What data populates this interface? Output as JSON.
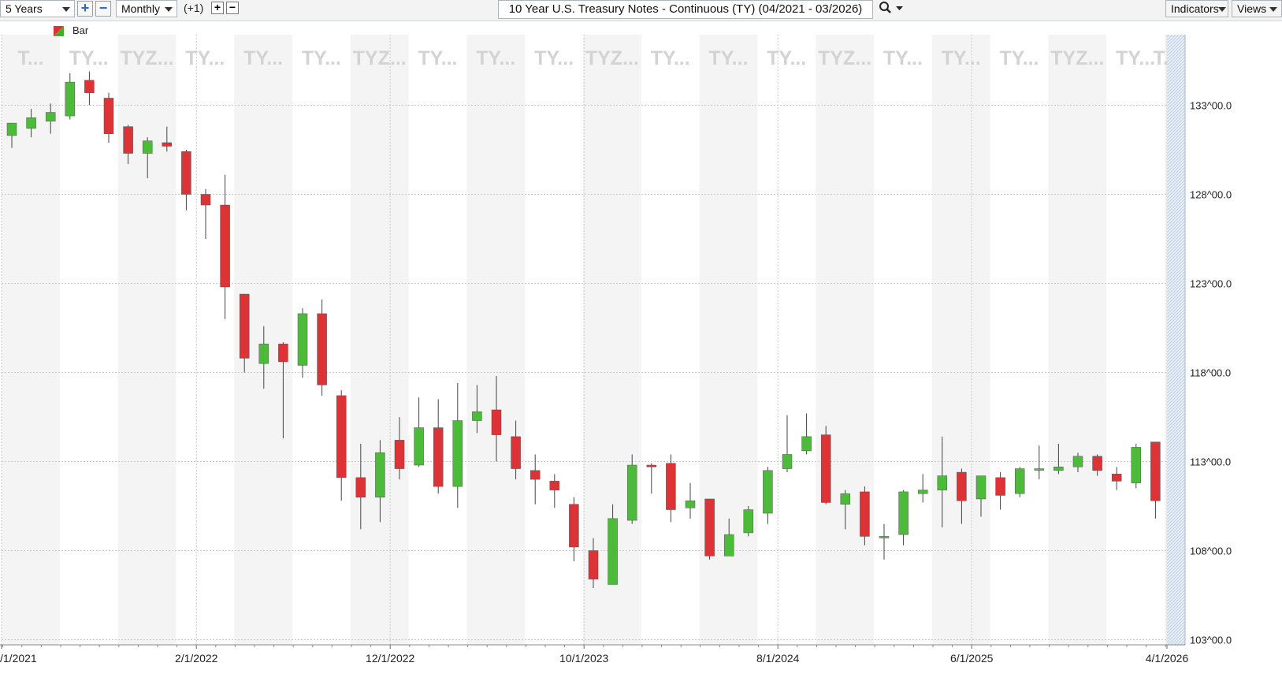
{
  "toolbar": {
    "range": "5 Years",
    "interval": "Monthly",
    "offset": "(+1)",
    "title": "10 Year U.S. Treasury Notes - Continuous (TY) (04/2021 - 03/2026)",
    "indicators_label": "Indicators",
    "views_label": "Views",
    "icons": {
      "zoom_in": "plus-icon",
      "zoom_out": "minus-icon",
      "offset_plus": "plus-icon",
      "offset_minus": "minus-icon",
      "search": "magnifier-icon",
      "dropdown": "chevron-down-icon"
    }
  },
  "legend": {
    "label": "Bar",
    "colors": [
      "#d9342b",
      "#3fae2a"
    ]
  },
  "colors": {
    "up": "#4dbb3a",
    "down": "#dd3337",
    "wick": "#444444",
    "grid": "#c9c9c9",
    "band": "#f4f4f4",
    "watermark": "#d3d3d3"
  },
  "chart_data": {
    "type": "candlestick",
    "interval": "monthly",
    "y_ticks": [
      "103^00.0",
      "108^00.0",
      "113^00.0",
      "118^00.0",
      "123^00.0",
      "128^00.0",
      "133^00.0"
    ],
    "ylim": [
      103,
      136
    ],
    "x_ticks": [
      "/1/2021",
      "2/1/2022",
      "12/1/2022",
      "10/1/2023",
      "8/1/2024",
      "6/1/2025",
      "4/1/2026"
    ],
    "watermarks": [
      "T...",
      "TY...",
      "TYZ...",
      "TY...",
      "TY...",
      "TY...",
      "TYZ...",
      "TY...",
      "TY...",
      "TY...",
      "TYZ...",
      "TY...",
      "TY...",
      "TY...",
      "TYZ...",
      "TY...",
      "TY...",
      "TY...",
      "TYZ...",
      "TY...",
      "T..."
    ],
    "candles": [
      {
        "month": "2021-04",
        "open": 131.3,
        "high": 132.0,
        "low": 130.6,
        "close": 132.0
      },
      {
        "month": "2021-05",
        "open": 131.7,
        "high": 132.8,
        "low": 131.2,
        "close": 132.3
      },
      {
        "month": "2021-06",
        "open": 132.1,
        "high": 133.1,
        "low": 131.4,
        "close": 132.6
      },
      {
        "month": "2021-07",
        "open": 132.4,
        "high": 134.8,
        "low": 132.2,
        "close": 134.3
      },
      {
        "month": "2021-08",
        "open": 134.4,
        "high": 134.9,
        "low": 133.0,
        "close": 133.7
      },
      {
        "month": "2021-09",
        "open": 133.4,
        "high": 133.7,
        "low": 130.9,
        "close": 131.4
      },
      {
        "month": "2021-10",
        "open": 131.8,
        "high": 131.9,
        "low": 129.7,
        "close": 130.3
      },
      {
        "month": "2021-11",
        "open": 130.3,
        "high": 131.2,
        "low": 128.9,
        "close": 131.0
      },
      {
        "month": "2021-12",
        "open": 130.9,
        "high": 131.8,
        "low": 130.4,
        "close": 130.7
      },
      {
        "month": "2022-01",
        "open": 130.4,
        "high": 130.5,
        "low": 127.1,
        "close": 128.0
      },
      {
        "month": "2022-02",
        "open": 128.0,
        "high": 128.3,
        "low": 125.5,
        "close": 127.4
      },
      {
        "month": "2022-03",
        "open": 127.4,
        "high": 129.1,
        "low": 121.0,
        "close": 122.8
      },
      {
        "month": "2022-04",
        "open": 122.4,
        "high": 122.4,
        "low": 118.0,
        "close": 118.8
      },
      {
        "month": "2022-05",
        "open": 118.5,
        "high": 120.6,
        "low": 117.1,
        "close": 119.6
      },
      {
        "month": "2022-06",
        "open": 119.6,
        "high": 119.7,
        "low": 114.3,
        "close": 118.6
      },
      {
        "month": "2022-07",
        "open": 118.4,
        "high": 121.6,
        "low": 117.7,
        "close": 121.3
      },
      {
        "month": "2022-08",
        "open": 121.3,
        "high": 122.1,
        "low": 116.7,
        "close": 117.3
      },
      {
        "month": "2022-09",
        "open": 116.7,
        "high": 117.0,
        "low": 110.8,
        "close": 112.1
      },
      {
        "month": "2022-10",
        "open": 112.1,
        "high": 114.0,
        "low": 109.2,
        "close": 111.0
      },
      {
        "month": "2022-11",
        "open": 111.0,
        "high": 114.2,
        "low": 109.6,
        "close": 113.5
      },
      {
        "month": "2022-12",
        "open": 114.2,
        "high": 115.5,
        "low": 112.0,
        "close": 112.6
      },
      {
        "month": "2023-01",
        "open": 112.8,
        "high": 116.6,
        "low": 112.7,
        "close": 114.9
      },
      {
        "month": "2023-02",
        "open": 114.9,
        "high": 116.5,
        "low": 111.2,
        "close": 111.6
      },
      {
        "month": "2023-03",
        "open": 111.6,
        "high": 117.4,
        "low": 110.4,
        "close": 115.3
      },
      {
        "month": "2023-04",
        "open": 115.3,
        "high": 117.3,
        "low": 114.6,
        "close": 115.8
      },
      {
        "month": "2023-05",
        "open": 115.9,
        "high": 117.8,
        "low": 113.0,
        "close": 114.5
      },
      {
        "month": "2023-06",
        "open": 114.4,
        "high": 115.3,
        "low": 112.0,
        "close": 112.6
      },
      {
        "month": "2023-07",
        "open": 112.5,
        "high": 113.4,
        "low": 110.6,
        "close": 112.0
      },
      {
        "month": "2023-08",
        "open": 111.9,
        "high": 112.3,
        "low": 110.4,
        "close": 111.4
      },
      {
        "month": "2023-09",
        "open": 110.6,
        "high": 111.0,
        "low": 107.4,
        "close": 108.2
      },
      {
        "month": "2023-10",
        "open": 108.0,
        "high": 108.7,
        "low": 105.9,
        "close": 106.4
      },
      {
        "month": "2023-11",
        "open": 106.1,
        "high": 110.6,
        "low": 106.1,
        "close": 109.8
      },
      {
        "month": "2023-12",
        "open": 109.7,
        "high": 113.4,
        "low": 109.5,
        "close": 112.8
      },
      {
        "month": "2024-01",
        "open": 112.8,
        "high": 112.9,
        "low": 111.2,
        "close": 112.7
      },
      {
        "month": "2024-02",
        "open": 112.9,
        "high": 113.4,
        "low": 109.6,
        "close": 110.3
      },
      {
        "month": "2024-03",
        "open": 110.4,
        "high": 111.8,
        "low": 109.8,
        "close": 110.8
      },
      {
        "month": "2024-04",
        "open": 110.9,
        "high": 110.9,
        "low": 107.5,
        "close": 107.7
      },
      {
        "month": "2024-05",
        "open": 107.7,
        "high": 109.8,
        "low": 107.7,
        "close": 108.9
      },
      {
        "month": "2024-06",
        "open": 109.0,
        "high": 110.5,
        "low": 108.8,
        "close": 110.3
      },
      {
        "month": "2024-07",
        "open": 110.1,
        "high": 112.7,
        "low": 109.5,
        "close": 112.5
      },
      {
        "month": "2024-08",
        "open": 112.6,
        "high": 115.6,
        "low": 112.4,
        "close": 113.4
      },
      {
        "month": "2024-09",
        "open": 113.6,
        "high": 115.7,
        "low": 113.4,
        "close": 114.4
      },
      {
        "month": "2024-10",
        "open": 114.5,
        "high": 115.0,
        "low": 110.6,
        "close": 110.7
      },
      {
        "month": "2024-11",
        "open": 110.6,
        "high": 111.4,
        "low": 109.2,
        "close": 111.2
      },
      {
        "month": "2024-12",
        "open": 111.3,
        "high": 111.6,
        "low": 108.3,
        "close": 108.8
      },
      {
        "month": "2025-01",
        "open": 108.8,
        "high": 109.5,
        "low": 107.5,
        "close": 108.8
      },
      {
        "month": "2025-02",
        "open": 108.9,
        "high": 111.4,
        "low": 108.3,
        "close": 111.3
      },
      {
        "month": "2025-03",
        "open": 111.2,
        "high": 112.3,
        "low": 110.7,
        "close": 111.4
      },
      {
        "month": "2025-04",
        "open": 111.4,
        "high": 114.4,
        "low": 109.3,
        "close": 112.2
      },
      {
        "month": "2025-05",
        "open": 112.4,
        "high": 112.6,
        "low": 109.5,
        "close": 110.8
      },
      {
        "month": "2025-06",
        "open": 110.9,
        "high": 112.1,
        "low": 109.9,
        "close": 112.2
      },
      {
        "month": "2025-07",
        "open": 112.1,
        "high": 112.4,
        "low": 110.3,
        "close": 111.1
      },
      {
        "month": "2025-08",
        "open": 111.2,
        "high": 112.7,
        "low": 111.0,
        "close": 112.6
      },
      {
        "month": "2025-09",
        "open": 112.6,
        "high": 113.9,
        "low": 112.0,
        "close": 112.6
      },
      {
        "month": "2025-10",
        "open": 112.5,
        "high": 114.0,
        "low": 112.3,
        "close": 112.7
      },
      {
        "month": "2025-11",
        "open": 112.7,
        "high": 113.5,
        "low": 112.4,
        "close": 113.3
      },
      {
        "month": "2025-12",
        "open": 113.3,
        "high": 113.4,
        "low": 112.2,
        "close": 112.5
      },
      {
        "month": "2026-01",
        "open": 112.3,
        "high": 112.7,
        "low": 111.4,
        "close": 111.9
      },
      {
        "month": "2026-02",
        "open": 111.8,
        "high": 114.0,
        "low": 111.5,
        "close": 113.8
      },
      {
        "month": "2026-03",
        "open": 114.1,
        "high": 114.1,
        "low": 109.8,
        "close": 110.8
      }
    ]
  }
}
